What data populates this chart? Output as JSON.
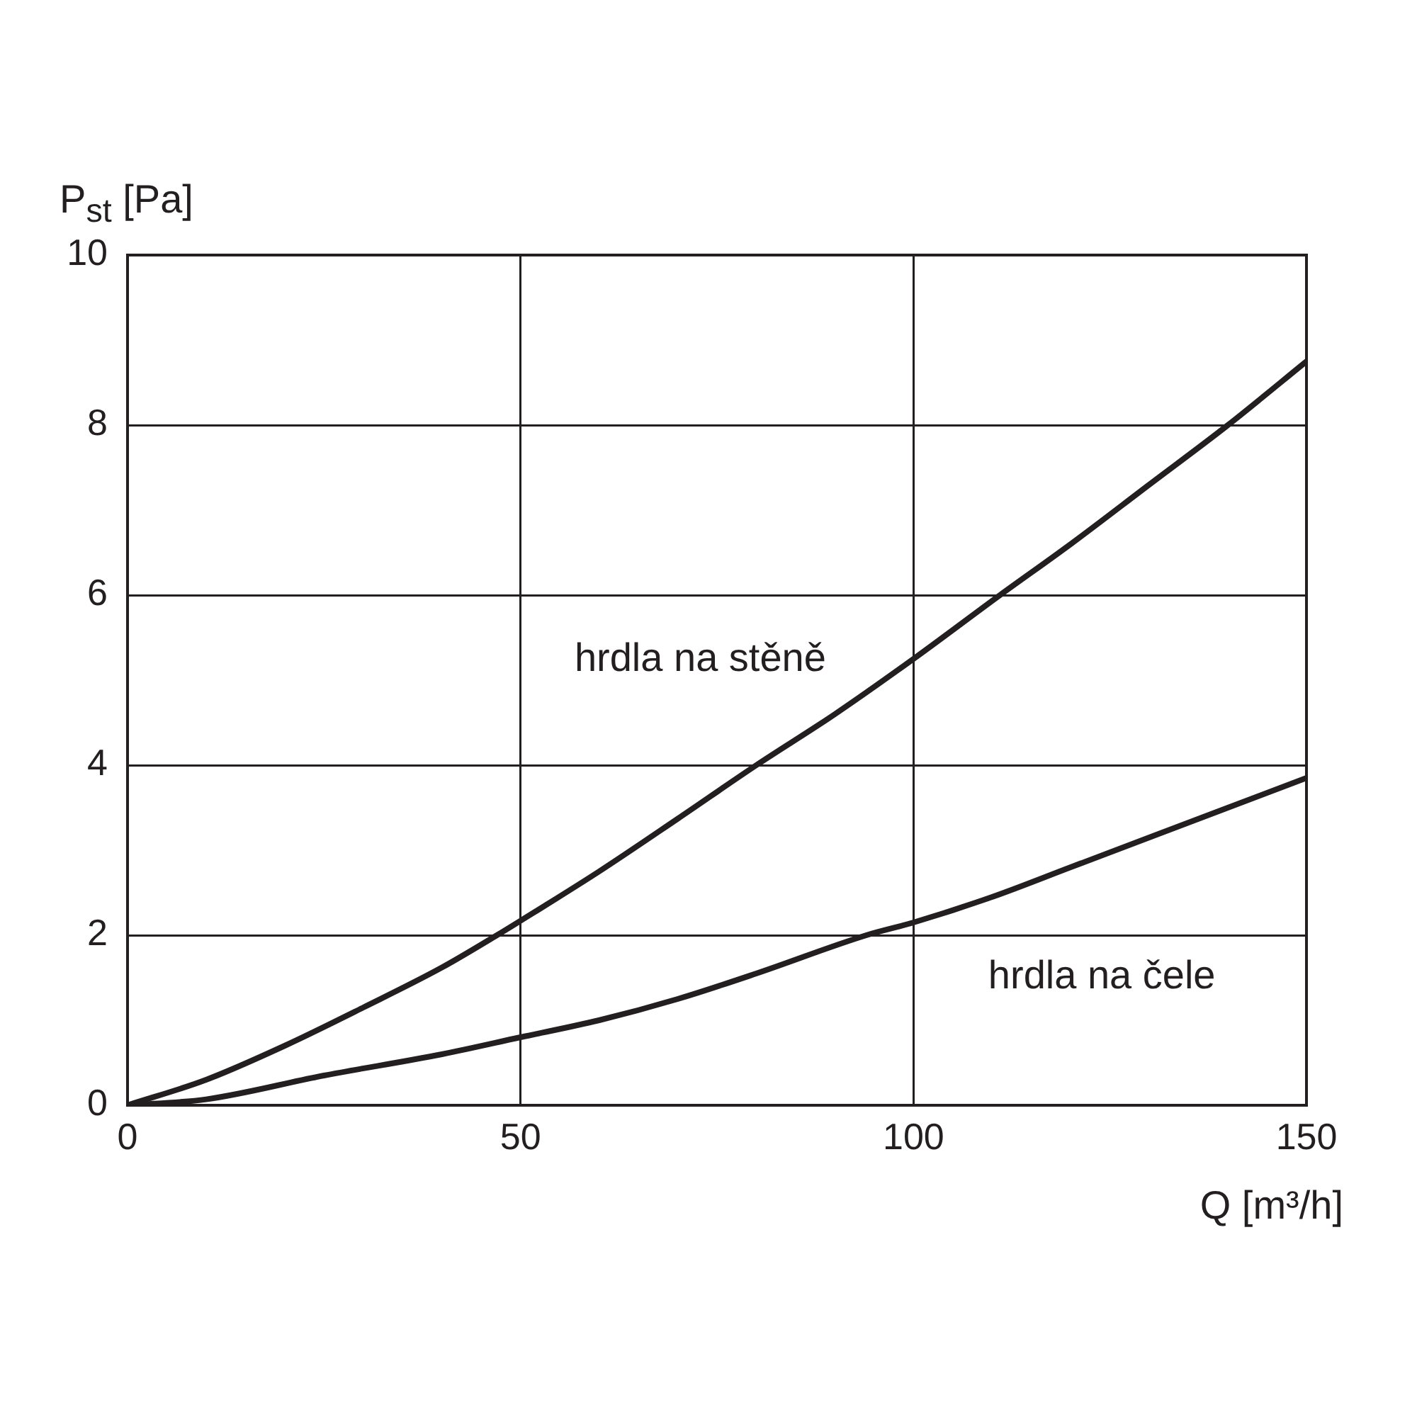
{
  "chart_data": {
    "type": "line",
    "xlabel": "Q [m³/h]",
    "ylabel": "P$_{st}$ [Pa]",
    "xlim": [
      0,
      150
    ],
    "ylim": [
      0,
      10
    ],
    "xticks": [
      0,
      50,
      100,
      150
    ],
    "yticks": [
      0,
      2,
      4,
      6,
      8,
      10
    ],
    "grid": true,
    "legend": false,
    "marker": "none",
    "line_style": "solid",
    "series": [
      {
        "name": "hrdla na stěně",
        "color": "#231f20",
        "x": [
          0,
          10,
          20,
          30,
          40,
          47,
          50,
          60,
          70,
          80,
          90,
          100,
          111,
          120,
          130,
          140,
          150
        ],
        "values": [
          0,
          0.3,
          0.7,
          1.15,
          1.62,
          2,
          2.17,
          2.75,
          3.37,
          4,
          4.6,
          5.25,
          6,
          6.6,
          7.3,
          8,
          8.75
        ]
      },
      {
        "name": "hrdla na čele",
        "color": "#231f20",
        "x": [
          0,
          10,
          25,
          40,
          50,
          60,
          70,
          80,
          94,
          100,
          110,
          120,
          130,
          140,
          150
        ],
        "values": [
          0,
          0.07,
          0.35,
          0.6,
          0.8,
          1.0,
          1.25,
          1.55,
          2,
          2.15,
          2.45,
          2.8,
          3.15,
          3.5,
          3.85
        ]
      }
    ]
  }
}
